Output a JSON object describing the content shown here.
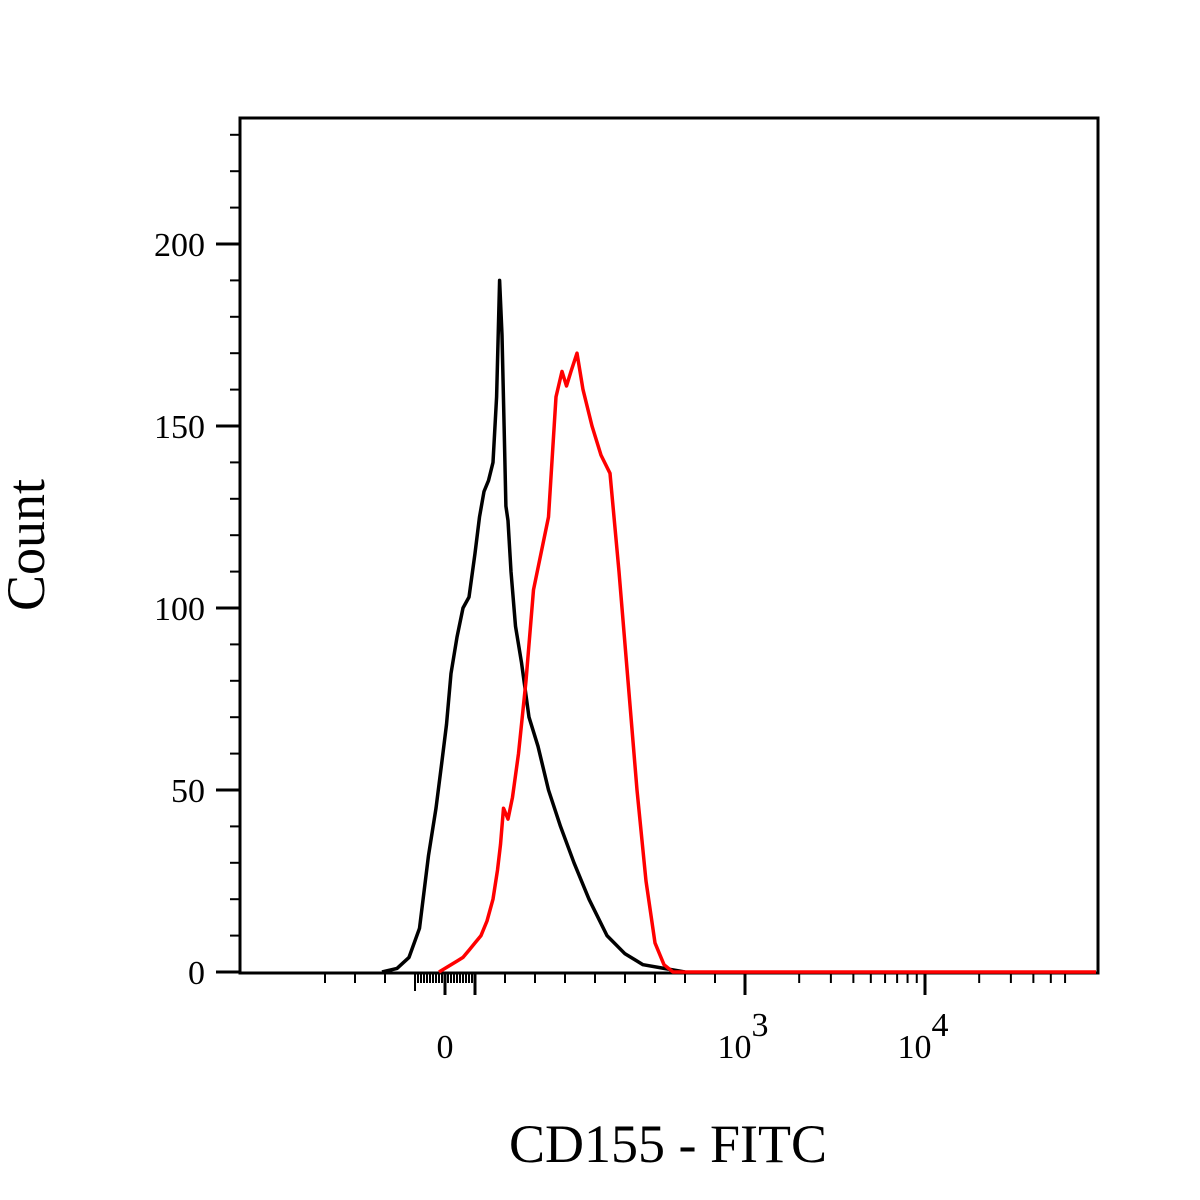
{
  "chart_data": {
    "type": "line",
    "title": "",
    "xlabel": "CD155 - FITC",
    "ylabel": "Count",
    "x_scale": "biexponential",
    "xlim": [
      -500,
      60000
    ],
    "ylim": [
      0,
      230
    ],
    "yticks": [
      {
        "value": 0,
        "label": "0"
      },
      {
        "value": 50,
        "label": "50"
      },
      {
        "value": 100,
        "label": "100"
      },
      {
        "value": 150,
        "label": "150"
      },
      {
        "value": 200,
        "label": "200"
      }
    ],
    "xticks": [
      {
        "value": 0,
        "label": "0"
      },
      {
        "value": 1000,
        "label": "10",
        "exp": "3"
      },
      {
        "value": 10000,
        "label": "10",
        "exp": "4"
      }
    ],
    "grid": false,
    "legend": "none",
    "series": [
      {
        "color": "#000000",
        "x": [
          -210,
          -160,
          -120,
          -85,
          -55,
          -30,
          -10,
          5,
          20,
          40,
          60,
          80,
          100,
          115,
          130,
          145,
          160,
          172,
          182,
          190,
          197,
          203,
          210,
          220,
          235,
          255,
          280,
          310,
          345,
          385,
          430,
          480,
          540,
          600,
          660,
          730,
          800
        ],
        "y": [
          0,
          1,
          4,
          12,
          32,
          45,
          58,
          68,
          82,
          92,
          100,
          103,
          115,
          125,
          132,
          135,
          140,
          158,
          190,
          175,
          150,
          128,
          124,
          110,
          95,
          85,
          70,
          62,
          50,
          40,
          30,
          20,
          10,
          5,
          2,
          1,
          0
        ]
      },
      {
        "color": "#ff0000",
        "x": [
          -20,
          0,
          20,
          40,
          60,
          80,
          100,
          120,
          140,
          160,
          175,
          185,
          195,
          210,
          225,
          245,
          270,
          295,
          320,
          345,
          370,
          390,
          405,
          420,
          440,
          460,
          490,
          520,
          550,
          580,
          610,
          640,
          670,
          700,
          730,
          760,
          800,
          900,
          1000,
          2000,
          5000,
          10000,
          30000,
          60000
        ],
        "y": [
          0,
          1,
          2,
          3,
          4,
          6,
          8,
          10,
          14,
          20,
          28,
          35,
          45,
          42,
          48,
          60,
          80,
          105,
          115,
          125,
          158,
          165,
          161,
          165,
          170,
          160,
          150,
          142,
          137,
          110,
          80,
          50,
          25,
          8,
          2,
          0,
          0,
          0,
          0,
          0,
          0,
          0,
          0,
          0
        ]
      }
    ]
  }
}
